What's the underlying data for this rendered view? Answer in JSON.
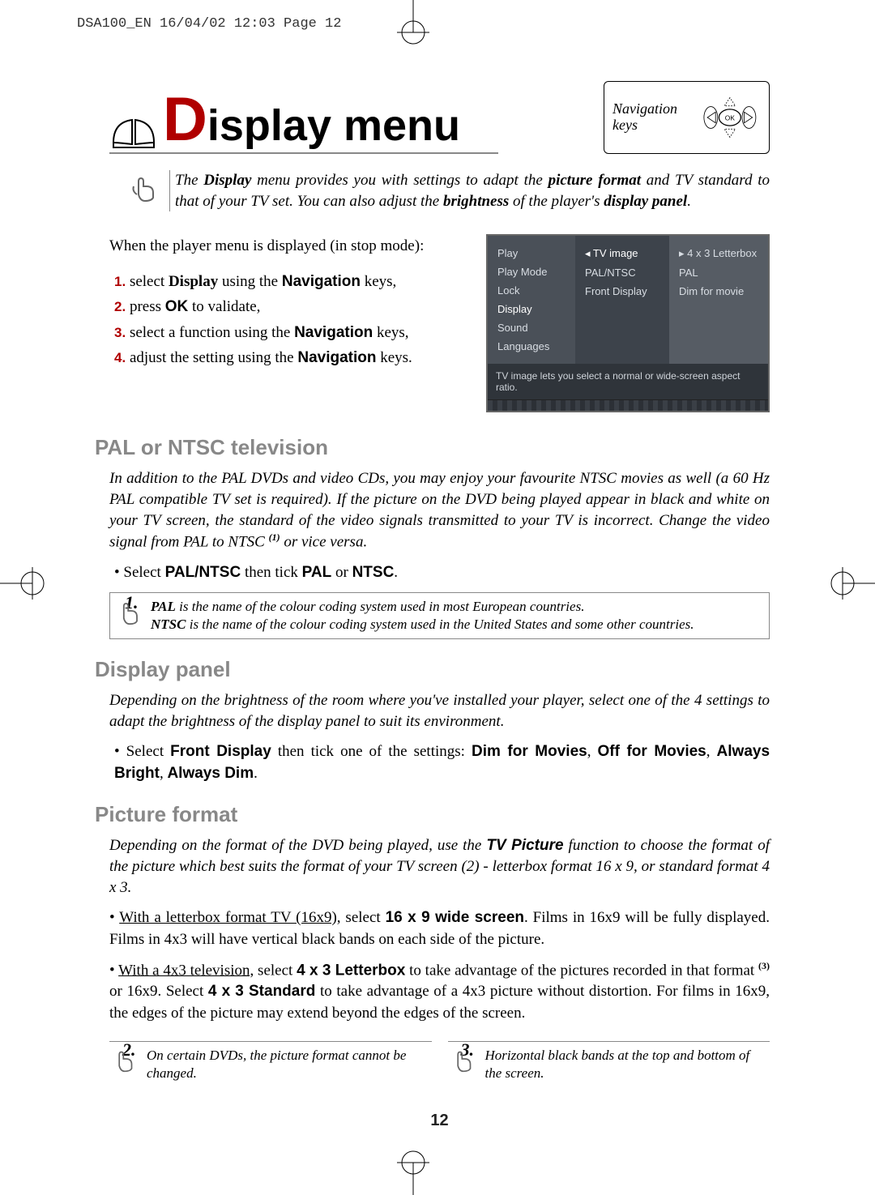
{
  "meta": {
    "header": "DSA100_EN  16/04/02 12:03  Page 12",
    "page_number": "12"
  },
  "title": {
    "cap": "D",
    "rest": "isplay menu"
  },
  "nav_box": {
    "label": "Navigation keys",
    "ok": "OK"
  },
  "intro": "The <b>Display</b> menu provides you with settings to adapt the <b>picture format</b> and TV standard to that of your TV set. You can also adjust the <b>brightness</b> of the player's <b>display panel</b>.",
  "steps_lead": "When the player menu is displayed (in stop mode):",
  "steps": [
    "select <b>Display</b> using the <nv>Navigation</nv> keys,",
    "press <ok>OK</ok> to validate,",
    "select a function using the <nv>Navigation</nv> keys,",
    "adjust the setting using the <nv>Navigation</nv> keys."
  ],
  "screenshot": {
    "col1": [
      "Play",
      "Play Mode",
      "Lock",
      "Display",
      "Sound",
      "Languages"
    ],
    "col2": [
      "TV image",
      "PAL/NTSC",
      "Front Display"
    ],
    "col3": [
      "4 x 3 Letterbox",
      "PAL",
      "Dim for movie"
    ],
    "hint": "TV image lets you select a normal or wide-screen aspect ratio."
  },
  "sec1": {
    "heading": "PAL or NTSC television",
    "para": "In addition to the PAL DVDs and video CDs, you may enjoy your favourite NTSC movies as well (a 60 Hz PAL compatible TV set is required). If the picture on the DVD being played appear in black and white on your TV screen, the standard of the video signals transmitted to your TV is incorrect. Change the video signal from PAL to NTSC <sup>(1)</sup> or vice versa.",
    "bullet": "Select <sb>PAL/NTSC</sb> then tick <sb>PAL</sb> or <sb>NTSC</sb>.",
    "note_tag": "1.",
    "note": "<b>PAL</b> is the name of the colour coding system used in most European countries.<br><b>NTSC</b> is the name of the colour coding system used in the United States and some other countries."
  },
  "sec2": {
    "heading": "Display panel",
    "para": "Depending on the brightness of the room where you've installed your player, select one of the 4 settings to adapt the brightness of the display panel to suit its environment.",
    "bullet": "Select <sb>Front Display</sb> then tick one of the settings: <sb>Dim for Movies</sb>, <sb>Off for Movies</sb>, <sb>Always Bright</sb>, <sb>Always Dim</sb>."
  },
  "sec3": {
    "heading": "Picture format",
    "para": "Depending on the format of the DVD being played, use the <sb>TV Picture</sb> function to choose the format of the picture which best suits the format of your TV screen (2) - letterbox format 16 x 9, or standard format 4 x 3.",
    "b1": "<u>With a letterbox format TV (16x9),</u> select <sb>16 x 9 wide screen</sb>. Films in 16x9 will be fully displayed. Films in 4x3 will have vertical black bands on each side of the picture.",
    "b2": "<u>With a 4x3 television,</u> select <sb>4 x 3 Letterbox</sb> to take advantage of the pictures recorded in that format <sup>(3)</sup> or 16x9. Select <sb>4 x 3 Standard</sb> to take advantage of a 4x3 picture without distortion. For films in 16x9, the edges of the picture may extend beyond the edges of the screen."
  },
  "footnotes": {
    "n2_tag": "2.",
    "n2": "On certain DVDs, the picture format cannot be changed.",
    "n3_tag": "3.",
    "n3": "Horizontal black bands at the top and bottom of the screen."
  },
  "colors": {
    "accent": "#b00000",
    "grey_heading": "#888888",
    "screenshot_bg": "#4a5058"
  }
}
